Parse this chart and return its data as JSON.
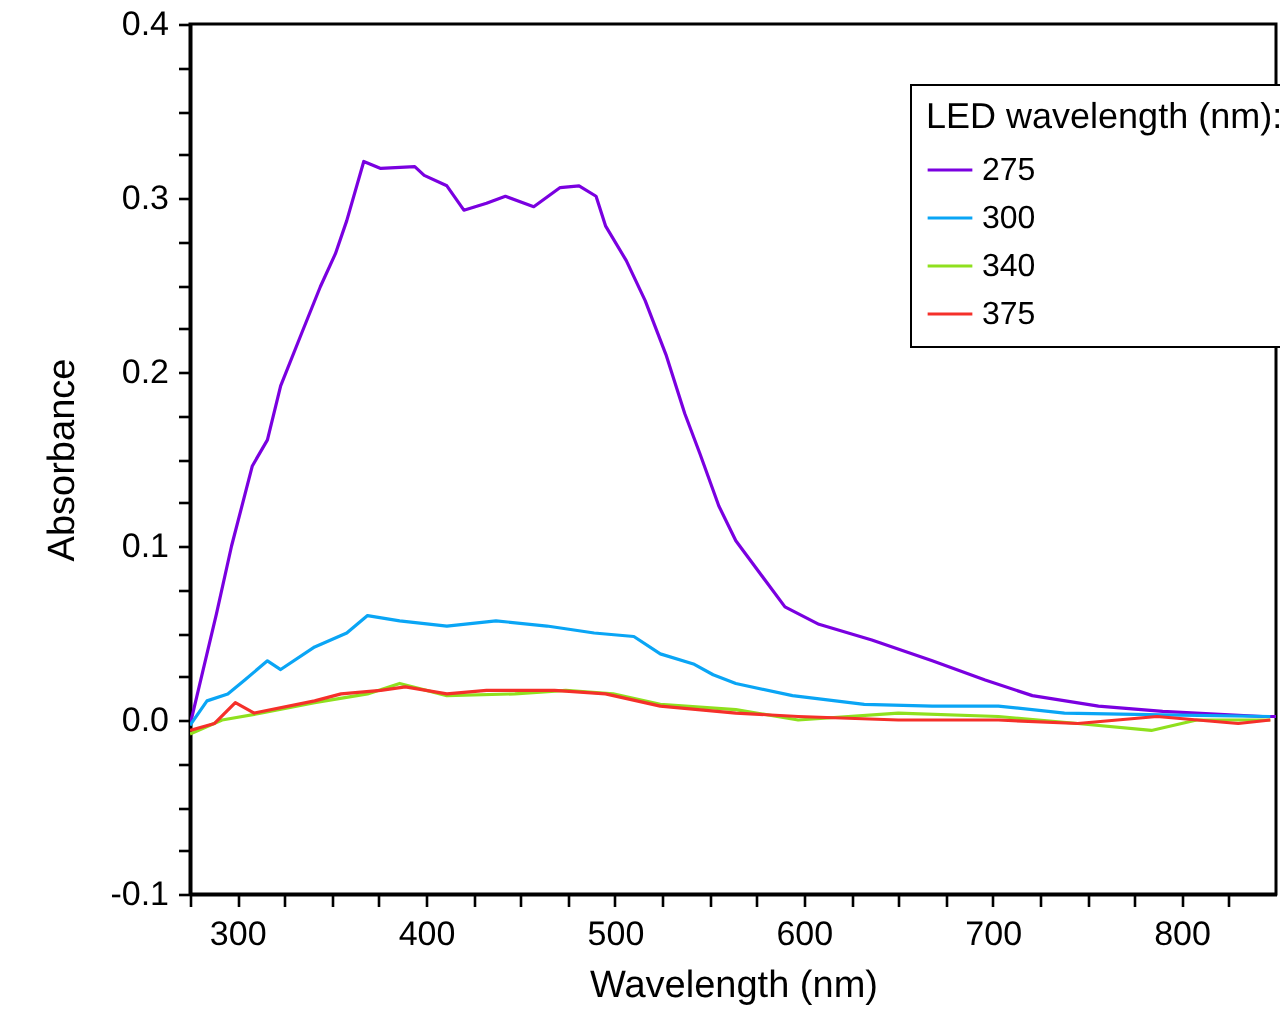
{
  "chart_data": {
    "type": "line",
    "xlabel": "Wavelength (nm)",
    "ylabel": "Absorbance",
    "legend_title": "LED wavelength (nm):",
    "legend": "top right",
    "grid": false,
    "marker": "none",
    "line_style": "solid",
    "xlim": [
      275,
      850
    ],
    "ylim": [
      -0.1,
      0.4
    ],
    "xticks": [
      {
        "value": 275,
        "label": null
      },
      300,
      {
        "value": 325,
        "label": null
      },
      {
        "value": 350,
        "label": null
      },
      {
        "value": 375,
        "label": null
      },
      400,
      {
        "value": 425,
        "label": null
      },
      {
        "value": 450,
        "label": null
      },
      {
        "value": 475,
        "label": null
      },
      500,
      {
        "value": 525,
        "label": null
      },
      {
        "value": 550,
        "label": null
      },
      {
        "value": 575,
        "label": null
      },
      600,
      {
        "value": 625,
        "label": null
      },
      {
        "value": 650,
        "label": null
      },
      {
        "value": 675,
        "label": null
      },
      700,
      {
        "value": 725,
        "label": null
      },
      {
        "value": 750,
        "label": null
      },
      {
        "value": 775,
        "label": null
      },
      800,
      {
        "value": 825,
        "label": null
      }
    ],
    "yticks": [
      -0.1,
      {
        "value": -0.075,
        "label": null
      },
      {
        "value": -0.05,
        "label": null
      },
      {
        "value": -0.025,
        "label": null
      },
      {
        "value": 0,
        "label": "0.0"
      },
      {
        "value": 0.025,
        "label": null
      },
      {
        "value": 0.05,
        "label": null
      },
      {
        "value": 0.075,
        "label": null
      },
      0.1,
      {
        "value": 0.125,
        "label": null
      },
      {
        "value": 0.15,
        "label": null
      },
      {
        "value": 0.175,
        "label": null
      },
      0.2,
      {
        "value": 0.225,
        "label": null
      },
      {
        "value": 0.25,
        "label": null
      },
      {
        "value": 0.275,
        "label": null
      },
      0.3,
      {
        "value": 0.325,
        "label": null
      },
      {
        "value": 0.35,
        "label": null
      },
      {
        "value": 0.375,
        "label": null
      },
      0.4
    ],
    "series": [
      {
        "name": "275",
        "color": "#7a00e0",
        "x": [
          275,
          289,
          297,
          308,
          316,
          323,
          334,
          344,
          352,
          358,
          367,
          376,
          394,
          399,
          411,
          420,
          432,
          442,
          457,
          471,
          481,
          490,
          495,
          506,
          516,
          527,
          537,
          545,
          555,
          564,
          590,
          608,
          636,
          668,
          696,
          721,
          756,
          790,
          843,
          850
        ],
        "values": [
          -0.003,
          0.061,
          0.1,
          0.146,
          0.161,
          0.192,
          0.222,
          0.249,
          0.268,
          0.287,
          0.321,
          0.317,
          0.318,
          0.313,
          0.307,
          0.293,
          0.297,
          0.301,
          0.295,
          0.306,
          0.307,
          0.301,
          0.284,
          0.264,
          0.241,
          0.21,
          0.176,
          0.153,
          0.123,
          0.103,
          0.065,
          0.055,
          0.046,
          0.034,
          0.023,
          0.014,
          0.008,
          0.005,
          0.002,
          0.002
        ]
      },
      {
        "name": "300",
        "color": "#0aa5f5",
        "x": [
          275,
          284,
          295,
          304,
          316,
          323,
          341,
          358,
          369,
          386,
          411,
          437,
          464,
          489,
          510,
          524,
          542,
          552,
          564,
          594,
          632,
          668,
          703,
          738,
          790,
          847
        ],
        "values": [
          -0.003,
          0.011,
          0.015,
          0.023,
          0.034,
          0.029,
          0.042,
          0.05,
          0.06,
          0.057,
          0.054,
          0.057,
          0.054,
          0.05,
          0.048,
          0.038,
          0.032,
          0.026,
          0.021,
          0.014,
          0.009,
          0.008,
          0.008,
          0.004,
          0.003,
          0.002
        ]
      },
      {
        "name": "340",
        "color": "#8fe01e",
        "x": [
          275,
          292,
          313,
          341,
          369,
          386,
          411,
          447,
          474,
          499,
          524,
          564,
          597,
          650,
          703,
          745,
          784,
          808,
          847
        ],
        "values": [
          -0.008,
          0.0,
          0.004,
          0.01,
          0.015,
          0.021,
          0.014,
          0.015,
          0.017,
          0.015,
          0.009,
          0.006,
          0.0,
          0.004,
          0.002,
          -0.002,
          -0.006,
          0.0,
          0.0
        ]
      },
      {
        "name": "375",
        "color": "#f5302a",
        "x": [
          275,
          288,
          299,
          309,
          341,
          355,
          376,
          389,
          411,
          432,
          468,
          495,
          524,
          564,
          597,
          650,
          703,
          745,
          787,
          830,
          847
        ],
        "values": [
          -0.006,
          -0.002,
          0.01,
          0.004,
          0.011,
          0.015,
          0.017,
          0.019,
          0.015,
          0.017,
          0.017,
          0.015,
          0.008,
          0.004,
          0.002,
          0.0,
          0.0,
          -0.002,
          0.002,
          -0.002,
          0.0
        ]
      }
    ]
  }
}
